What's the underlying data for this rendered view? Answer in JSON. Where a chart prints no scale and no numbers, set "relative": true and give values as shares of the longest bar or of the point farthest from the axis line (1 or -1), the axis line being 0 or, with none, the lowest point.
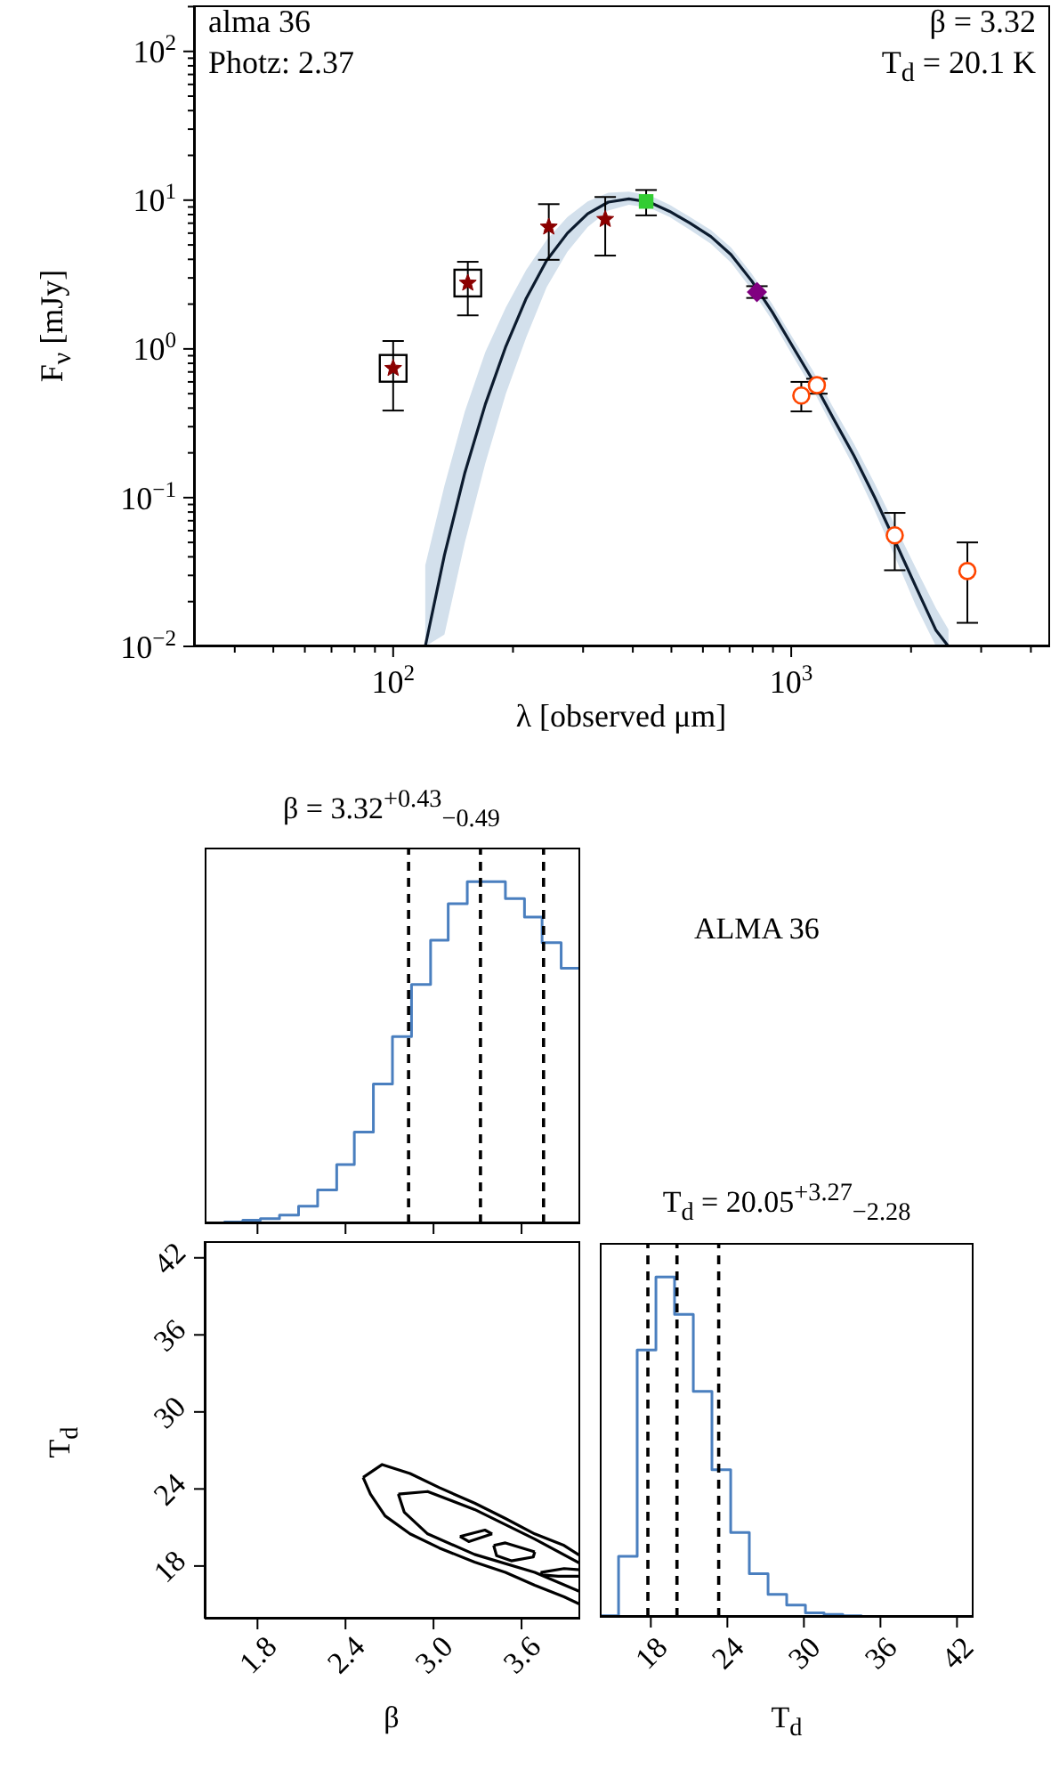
{
  "chart_data": [
    {
      "type": "scatter",
      "log": "xy",
      "xlim": [
        31.6,
        4470
      ],
      "ylim": [
        0.01,
        204
      ],
      "xticks": [
        {
          "value": 40,
          "label": null
        },
        {
          "value": 50,
          "label": null
        },
        {
          "value": 60,
          "label": null
        },
        {
          "value": 70,
          "label": null
        },
        {
          "value": 80,
          "label": null
        },
        {
          "value": 90,
          "label": null
        },
        {
          "value": 100,
          "label": "10$^{2}$"
        },
        {
          "value": 200,
          "label": null
        },
        {
          "value": 300,
          "label": null
        },
        {
          "value": 400,
          "label": null
        },
        {
          "value": 500,
          "label": null
        },
        {
          "value": 600,
          "label": null
        },
        {
          "value": 700,
          "label": null
        },
        {
          "value": 800,
          "label": null
        },
        {
          "value": 900,
          "label": null
        },
        {
          "value": 1000,
          "label": "10$^{3}$"
        },
        {
          "value": 2000,
          "label": null
        },
        {
          "value": 3000,
          "label": null
        },
        {
          "value": 4000,
          "label": null
        }
      ],
      "yticks": [
        {
          "value": 0.01,
          "label": "10$^{−2}$"
        },
        {
          "value": 0.02,
          "label": null
        },
        {
          "value": 0.03,
          "label": null
        },
        {
          "value": 0.04,
          "label": null
        },
        {
          "value": 0.05,
          "label": null
        },
        {
          "value": 0.06,
          "label": null
        },
        {
          "value": 0.07,
          "label": null
        },
        {
          "value": 0.08,
          "label": null
        },
        {
          "value": 0.09,
          "label": null
        },
        {
          "value": 0.1,
          "label": "10$^{−1}$"
        },
        {
          "value": 0.2,
          "label": null
        },
        {
          "value": 0.3,
          "label": null
        },
        {
          "value": 0.4,
          "label": null
        },
        {
          "value": 0.5,
          "label": null
        },
        {
          "value": 0.6,
          "label": null
        },
        {
          "value": 0.7,
          "label": null
        },
        {
          "value": 0.8,
          "label": null
        },
        {
          "value": 0.9,
          "label": null
        },
        {
          "value": 1,
          "label": "10$^{0}$"
        },
        {
          "value": 2,
          "label": null
        },
        {
          "value": 3,
          "label": null
        },
        {
          "value": 4,
          "label": null
        },
        {
          "value": 5,
          "label": null
        },
        {
          "value": 6,
          "label": null
        },
        {
          "value": 7,
          "label": null
        },
        {
          "value": 8,
          "label": null
        },
        {
          "value": 9,
          "label": null
        },
        {
          "value": 10,
          "label": "10$^{1}$"
        },
        {
          "value": 20,
          "label": null
        },
        {
          "value": 30,
          "label": null
        },
        {
          "value": 40,
          "label": null
        },
        {
          "value": 50,
          "label": null
        },
        {
          "value": 60,
          "label": null
        },
        {
          "value": 70,
          "label": null
        },
        {
          "value": 80,
          "label": null
        },
        {
          "value": 90,
          "label": null
        },
        {
          "value": 100,
          "label": "10$^{2}$"
        },
        {
          "value": 200,
          "label": null
        }
      ],
      "xlabel": "λ [observed μm]",
      "ylabel": "F$_{ν}$ [mJy]",
      "annotations": [
        "alma 36",
        "Photz: 2.37",
        "β = 3.32",
        "T$_{d}$ = 20.1 K"
      ],
      "series": [
        {
          "type": "line",
          "color": "#0c1b2e",
          "x": [
            120.4,
            134.5,
            151.4,
            170.4,
            191.9,
            216,
            243,
            274,
            308,
            347,
            391,
            440,
            495,
            557,
            628,
            706,
            796,
            896,
            1008,
            1135,
            1277,
            1438,
            1619,
            1823,
            2052,
            2311,
            2483
          ],
          "values": [
            0.01,
            0.041,
            0.147,
            0.424,
            1.04,
            2.19,
            3.93,
            6.0,
            8.1,
            9.7,
            10.2,
            9.7,
            8.4,
            7.0,
            5.7,
            4.3,
            2.86,
            1.77,
            1.04,
            0.61,
            0.34,
            0.191,
            0.101,
            0.051,
            0.0255,
            0.0128,
            0.01
          ],
          "lower": [
            0.01,
            0.012,
            0.05,
            0.17,
            0.5,
            1.2,
            2.6,
            4.5,
            6.6,
            8.5,
            9.3,
            8.9,
            7.7,
            6.3,
            5.1,
            3.8,
            2.5,
            1.55,
            0.9,
            0.53,
            0.29,
            0.16,
            0.082,
            0.04,
            0.019,
            0.01,
            0.01
          ],
          "upper": [
            0.035,
            0.12,
            0.38,
            0.95,
            1.9,
            3.4,
            5.4,
            7.7,
            9.8,
            11.2,
            11.4,
            10.8,
            9.3,
            7.7,
            6.3,
            4.8,
            3.2,
            2.0,
            1.19,
            0.71,
            0.4,
            0.23,
            0.125,
            0.065,
            0.034,
            0.018,
            0.013
          ]
        },
        {
          "type": "scatter",
          "color": "#000000",
          "marker": "square",
          "x": [
            100,
            154
          ],
          "values": [
            0.74,
            2.77
          ]
        },
        {
          "type": "scatter",
          "color": "#8b0000",
          "marker": "star",
          "x": [
            100,
            154,
            246,
            341
          ],
          "values": [
            0.74,
            2.77,
            6.6,
            7.43
          ],
          "errors": [
            [
              0.385,
              1.13
            ],
            [
              1.68,
              3.85
            ],
            [
              3.97,
              9.4
            ],
            [
              4.24,
              10.5
            ]
          ]
        },
        {
          "type": "scatter",
          "color": "#32cd32",
          "marker": "square",
          "x": [
            432
          ],
          "values": [
            9.8
          ],
          "errors": [
            [
              7.9,
              11.7
            ]
          ]
        },
        {
          "type": "scatter",
          "color": "#800080",
          "marker": "diamond",
          "x": [
            820
          ],
          "values": [
            2.41
          ],
          "errors": [
            [
              2.2,
              2.64
            ]
          ]
        },
        {
          "type": "scatter",
          "color": "#ff4500",
          "marker": "circle",
          "x": [
            1060,
            1160,
            1820,
            2770
          ],
          "values": [
            0.486,
            0.57,
            0.0558,
            0.0321
          ],
          "errors": [
            [
              0.38,
              0.6
            ],
            [
              0.5,
              0.63
            ],
            [
              0.0325,
              0.079
            ],
            [
              0.0144,
              0.05
            ]
          ]
        }
      ]
    },
    {
      "type": "step",
      "title": "β = 3.32$^{+0.43}$$_{−0.49}$",
      "relative": true,
      "color": "#4a7fbf",
      "xlim": [
        1.44,
        4.0
      ],
      "xticks": [
        1.8,
        2.4,
        3,
        3.6
      ],
      "tick_labels": false,
      "x": [
        1.57,
        1.7,
        1.82,
        1.95,
        2.08,
        2.21,
        2.34,
        2.46,
        2.59,
        2.72,
        2.85,
        2.98,
        3.1,
        3.23,
        3.36,
        3.49,
        3.62,
        3.74,
        3.87,
        4.0
      ],
      "values": [
        0.004,
        0.009,
        0.014,
        0.024,
        0.05,
        0.098,
        0.172,
        0.267,
        0.408,
        0.547,
        0.699,
        0.829,
        0.936,
        1,
        1,
        0.951,
        0.897,
        0.822,
        0.747,
        0.747
      ],
      "ref_lines": [
        {
          "axis": "x",
          "value": 2.83,
          "color": "#000000",
          "line_style": "dashed"
        },
        {
          "axis": "x",
          "value": 3.32,
          "color": "#000000",
          "line_style": "dashed"
        },
        {
          "axis": "x",
          "value": 3.75,
          "color": "#000000",
          "line_style": "dashed"
        }
      ],
      "annotations": [
        "ALMA 36"
      ]
    },
    {
      "type": "line",
      "xlim": [
        1.44,
        4.0
      ],
      "ylim": [
        13.9,
        43.3
      ],
      "xticks": [
        1.8,
        2.4,
        {
          "value": 3,
          "label": "3.0"
        },
        3.6
      ],
      "yticks": [
        18,
        24,
        30,
        36,
        42
      ],
      "xlabel": "β",
      "ylabel": "T$_{d}$",
      "series": [
        {
          "color": "#000000",
          "x": [
            2.52,
            2.65,
            2.84,
            3.04,
            3.28,
            3.49,
            3.69,
            3.89,
            4.0
          ],
          "values": [
            24.9,
            25.9,
            25.2,
            24.1,
            22.9,
            21.7,
            20.5,
            19.6,
            18.8
          ]
        },
        {
          "color": "#000000",
          "x": [
            2.52,
            2.57,
            2.67,
            2.84,
            3.04,
            3.28,
            3.49,
            3.69,
            3.89,
            4.0
          ],
          "values": [
            24.9,
            23.6,
            21.9,
            20.5,
            19.4,
            18.3,
            17.5,
            16.5,
            15.6,
            15.0
          ]
        },
        {
          "color": "#000000",
          "x": [
            2.76,
            2.96,
            3.28,
            3.69,
            4.0
          ],
          "values": [
            23.6,
            23.8,
            22.4,
            20.1,
            18.2
          ]
        },
        {
          "color": "#000000",
          "x": [
            2.76,
            2.8,
            2.96,
            3.28,
            3.69,
            4.0
          ],
          "values": [
            23.6,
            22.2,
            20.5,
            18.9,
            17.5,
            16.0
          ]
        },
        {
          "color": "#000000",
          "x": [
            3.18,
            3.35,
            3.4
          ],
          "values": [
            20.3,
            20.8,
            20.5
          ]
        },
        {
          "color": "#000000",
          "x": [
            3.18,
            3.24,
            3.4
          ],
          "values": [
            20.3,
            19.9,
            20.5
          ]
        },
        {
          "color": "#000000",
          "x": [
            3.41,
            3.49,
            3.69
          ],
          "values": [
            19.6,
            19.8,
            19.1
          ]
        },
        {
          "color": "#000000",
          "x": [
            3.41,
            3.43,
            3.53,
            3.68,
            3.69
          ],
          "values": [
            19.6,
            18.8,
            18.4,
            18.7,
            19.1
          ]
        },
        {
          "color": "#000000",
          "x": [
            3.73,
            3.89,
            4.0
          ],
          "values": [
            17.5,
            17.8,
            17.7
          ]
        },
        {
          "color": "#000000",
          "x": [
            3.73,
            3.74,
            3.85,
            4.0
          ],
          "values": [
            17.5,
            17.3,
            17.2,
            17.2
          ]
        }
      ]
    },
    {
      "type": "step",
      "title": "T$_{d}$ = 20.05$^{+3.27}$$_{−2.28}$",
      "relative": true,
      "color": "#4a7fbf",
      "xlim": [
        14.0,
        43.3
      ],
      "xticks": [
        18,
        24,
        30,
        36,
        42
      ],
      "xlabel": "T$_{d}$",
      "tick_labels": "x",
      "x": [
        14.0,
        15.47,
        16.93,
        18.4,
        19.86,
        21.33,
        22.79,
        24.26,
        25.72,
        27.19,
        28.65,
        30.12,
        31.58,
        33.05,
        34.51
      ],
      "values": [
        0.003,
        0.178,
        0.785,
        1,
        0.89,
        0.663,
        0.433,
        0.248,
        0.127,
        0.066,
        0.035,
        0.012,
        0.007,
        0.003,
        0.002
      ],
      "ref_lines": [
        {
          "axis": "x",
          "value": 17.77,
          "color": "#000000",
          "line_style": "dashed"
        },
        {
          "axis": "x",
          "value": 20.05,
          "color": "#000000",
          "line_style": "dashed"
        },
        {
          "axis": "x",
          "value": 23.32,
          "color": "#000000",
          "line_style": "dashed"
        }
      ]
    }
  ]
}
